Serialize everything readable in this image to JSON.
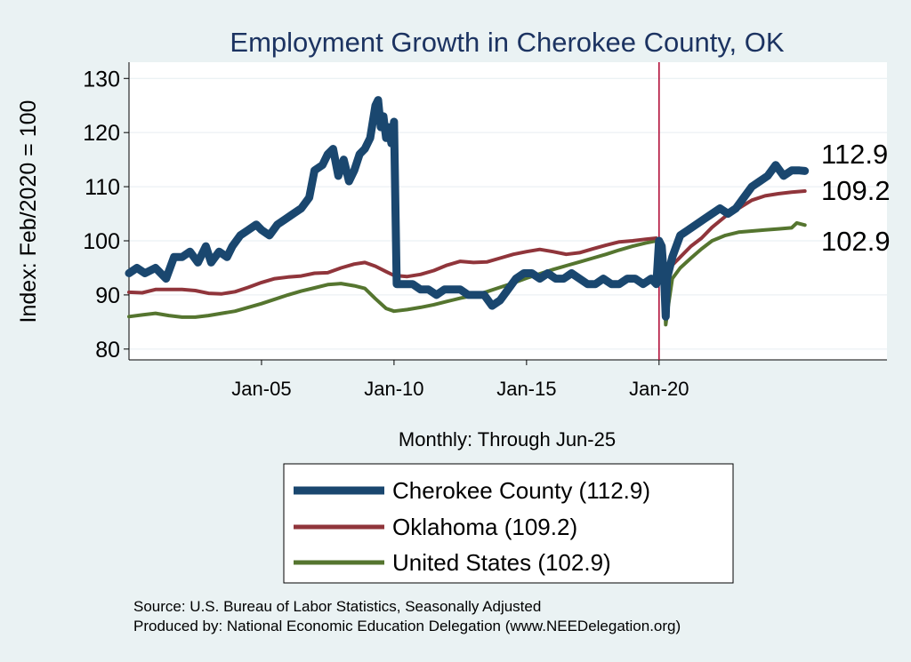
{
  "chart_data": {
    "type": "line",
    "title": "Employment Growth in Cherokee  County, OK",
    "ylabel": "Index: Feb/2020 = 100",
    "xlabel": "Monthly: Through Jun-25",
    "ylim": [
      78,
      133
    ],
    "xlim": [
      2000.0,
      2028.6
    ],
    "y_ticks": [
      80,
      90,
      100,
      110,
      120,
      130
    ],
    "x_ticks": [
      {
        "value": 2005.0,
        "label": "Jan-05"
      },
      {
        "value": 2010.0,
        "label": "Jan-10"
      },
      {
        "value": 2015.0,
        "label": "Jan-15"
      },
      {
        "value": 2020.0,
        "label": "Jan-20"
      }
    ],
    "reference_line_x": 2020.0,
    "grid": true,
    "legend_position": "bottom",
    "series": [
      {
        "name": "Cherokee  County",
        "legend_label": "Cherokee  County (112.9)",
        "color": "#1a476f",
        "end_label": "112.9",
        "x": [
          2000.0,
          2000.3,
          2000.6,
          2001.0,
          2001.4,
          2001.7,
          2002.0,
          2002.3,
          2002.6,
          2002.9,
          2003.1,
          2003.4,
          2003.7,
          2003.9,
          2004.2,
          2004.5,
          2004.8,
          2005.0,
          2005.3,
          2005.6,
          2005.9,
          2006.2,
          2006.5,
          2006.8,
          2007.0,
          2007.3,
          2007.5,
          2007.7,
          2007.9,
          2008.1,
          2008.3,
          2008.5,
          2008.7,
          2008.9,
          2009.1,
          2009.3,
          2009.4,
          2009.5,
          2009.6,
          2009.7,
          2009.8,
          2009.9,
          2010.0,
          2010.1,
          2010.4,
          2010.7,
          2011.0,
          2011.3,
          2011.6,
          2011.9,
          2012.2,
          2012.5,
          2012.8,
          2013.1,
          2013.4,
          2013.7,
          2014.0,
          2014.3,
          2014.6,
          2014.9,
          2015.2,
          2015.5,
          2015.8,
          2016.1,
          2016.4,
          2016.7,
          2017.0,
          2017.3,
          2017.6,
          2017.9,
          2018.2,
          2018.5,
          2018.8,
          2019.1,
          2019.4,
          2019.7,
          2019.9,
          2020.0,
          2020.1,
          2020.2,
          2020.25,
          2020.3,
          2020.5,
          2020.8,
          2021.1,
          2021.4,
          2021.7,
          2022.0,
          2022.3,
          2022.6,
          2022.9,
          2023.2,
          2023.5,
          2023.8,
          2024.1,
          2024.4,
          2024.7,
          2025.0,
          2025.3,
          2025.5
        ],
        "values": [
          94,
          95,
          94,
          95,
          93,
          97,
          97,
          98,
          96,
          99,
          96,
          98,
          97,
          99,
          101,
          102,
          103,
          102,
          101,
          103,
          104,
          105,
          106,
          108,
          113,
          114,
          116,
          117,
          112,
          115,
          111,
          113,
          116,
          117,
          119,
          125,
          126,
          121,
          123,
          119,
          121,
          118,
          122,
          92,
          92,
          92,
          91,
          91,
          90,
          91,
          91,
          91,
          90,
          90,
          90,
          88,
          89,
          91,
          93,
          94,
          94,
          93,
          94,
          93,
          93,
          94,
          93,
          92,
          92,
          93,
          92,
          92,
          93,
          93,
          92,
          93,
          92,
          100,
          99,
          92,
          86,
          93,
          97,
          101,
          102,
          103,
          104,
          105,
          106,
          105,
          106,
          108,
          110,
          111,
          112,
          114,
          112,
          113,
          113,
          112.9
        ]
      },
      {
        "name": "Oklahoma",
        "legend_label": "Oklahoma (109.2)",
        "color": "#90353b",
        "end_label": "109.2",
        "x": [
          2000.0,
          2000.5,
          2001.0,
          2001.5,
          2002.0,
          2002.5,
          2003.0,
          2003.5,
          2004.0,
          2004.5,
          2005.0,
          2005.5,
          2006.0,
          2006.5,
          2007.0,
          2007.5,
          2008.0,
          2008.5,
          2008.9,
          2009.3,
          2009.7,
          2010.0,
          2010.5,
          2011.0,
          2011.5,
          2012.0,
          2012.5,
          2013.0,
          2013.5,
          2014.0,
          2014.5,
          2015.0,
          2015.5,
          2016.0,
          2016.5,
          2017.0,
          2017.5,
          2018.0,
          2018.5,
          2019.0,
          2019.5,
          2019.9,
          2020.0,
          2020.15,
          2020.25,
          2020.35,
          2020.5,
          2020.8,
          2021.2,
          2021.6,
          2022.0,
          2022.5,
          2023.0,
          2023.5,
          2024.0,
          2024.5,
          2025.0,
          2025.5
        ],
        "values": [
          90.5,
          90.4,
          91.0,
          91.0,
          91.0,
          90.8,
          90.3,
          90.2,
          90.6,
          91.4,
          92.3,
          93.0,
          93.3,
          93.5,
          94.0,
          94.1,
          95.0,
          95.7,
          96.0,
          95.3,
          94.3,
          93.6,
          93.4,
          93.8,
          94.5,
          95.5,
          96.2,
          96.0,
          96.1,
          96.8,
          97.5,
          98.0,
          98.4,
          98.0,
          97.5,
          97.8,
          98.5,
          99.2,
          99.8,
          100.0,
          100.3,
          100.5,
          100.0,
          98.0,
          87.0,
          93.0,
          95.5,
          97.0,
          99.0,
          100.5,
          102.5,
          104.5,
          106.0,
          107.5,
          108.3,
          108.7,
          109.0,
          109.2
        ]
      },
      {
        "name": "United States",
        "legend_label": "United States (102.9)",
        "color": "#55752f",
        "end_label": "102.9",
        "x": [
          2000.0,
          2000.5,
          2001.0,
          2001.5,
          2002.0,
          2002.5,
          2003.0,
          2003.5,
          2004.0,
          2004.5,
          2005.0,
          2005.5,
          2006.0,
          2006.5,
          2007.0,
          2007.5,
          2008.0,
          2008.5,
          2008.9,
          2009.3,
          2009.7,
          2010.0,
          2010.5,
          2011.0,
          2011.5,
          2012.0,
          2012.5,
          2013.0,
          2013.5,
          2014.0,
          2014.5,
          2015.0,
          2015.5,
          2016.0,
          2016.5,
          2017.0,
          2017.5,
          2018.0,
          2018.5,
          2019.0,
          2019.5,
          2019.9,
          2020.0,
          2020.15,
          2020.25,
          2020.35,
          2020.5,
          2020.8,
          2021.2,
          2021.6,
          2022.0,
          2022.5,
          2023.0,
          2023.5,
          2024.0,
          2024.5,
          2025.0,
          2025.2,
          2025.5
        ],
        "values": [
          86.0,
          86.3,
          86.6,
          86.2,
          85.9,
          85.9,
          86.2,
          86.6,
          87.0,
          87.7,
          88.4,
          89.2,
          90.0,
          90.7,
          91.3,
          91.9,
          92.1,
          91.7,
          91.2,
          89.3,
          87.5,
          87.0,
          87.3,
          87.7,
          88.2,
          88.8,
          89.4,
          89.9,
          90.6,
          91.4,
          92.2,
          93.1,
          93.9,
          94.7,
          95.4,
          96.1,
          96.8,
          97.5,
          98.3,
          99.0,
          99.6,
          100.0,
          99.8,
          98.0,
          84.5,
          88.0,
          93.0,
          95.0,
          96.8,
          98.5,
          100.0,
          101.0,
          101.6,
          101.8,
          102.0,
          102.2,
          102.4,
          103.3,
          102.9
        ]
      }
    ]
  },
  "source_note": "Source: U.S. Bureau of Labor Statistics, Seasonally Adjusted",
  "produced_note": "Produced by: National Economic Education Delegation (www.NEEDelegation.org)"
}
